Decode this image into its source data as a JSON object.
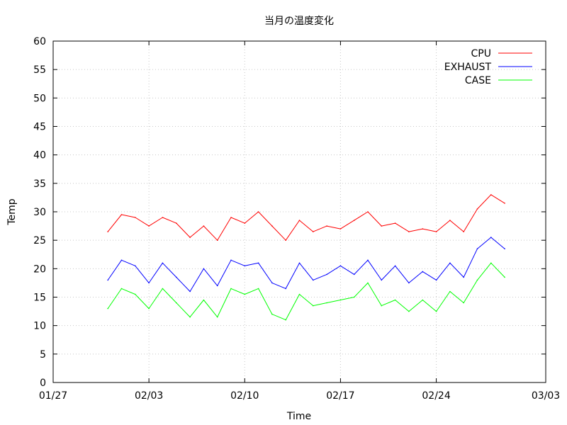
{
  "chart_data": {
    "type": "line",
    "title": "当月の温度変化",
    "xlabel": "Time",
    "ylabel": "Temp",
    "x_range": [
      "01/27",
      "03/03"
    ],
    "ylim": [
      0,
      60
    ],
    "y_ticks": [
      "0",
      "5",
      "10",
      "15",
      "20",
      "25",
      "30",
      "35",
      "40",
      "45",
      "50",
      "55",
      "60"
    ],
    "x_ticks": [
      "01/27",
      "02/03",
      "02/10",
      "02/17",
      "02/24",
      "03/03"
    ],
    "grid": true,
    "legend_position": "top-right",
    "x": [
      "01/31",
      "02/01",
      "02/02",
      "02/03",
      "02/04",
      "02/05",
      "02/06",
      "02/07",
      "02/08",
      "02/09",
      "02/10",
      "02/11",
      "02/12",
      "02/13",
      "02/14",
      "02/15",
      "02/16",
      "02/17",
      "02/18",
      "02/19",
      "02/20",
      "02/21",
      "02/22",
      "02/23",
      "02/24",
      "02/25",
      "02/26",
      "02/27",
      "02/28",
      "02/29"
    ],
    "series": [
      {
        "name": "CPU",
        "color": "#ff0000",
        "values": [
          26.5,
          29.5,
          29,
          27.5,
          29,
          28,
          25.5,
          27.5,
          25,
          29,
          28,
          30,
          27.5,
          25,
          28.5,
          26.5,
          27.5,
          27,
          28.5,
          30,
          27.5,
          28,
          26.5,
          27,
          26.5,
          28.5,
          26.5,
          30.5,
          33,
          31.5
        ]
      },
      {
        "name": "EXHAUST",
        "color": "#0000ff",
        "values": [
          18,
          21.5,
          20.5,
          17.5,
          21,
          18.5,
          16,
          20,
          17,
          21.5,
          20.5,
          21,
          17.5,
          16.5,
          21,
          18,
          19,
          20.5,
          19,
          21.5,
          18,
          20.5,
          17.5,
          19.5,
          18,
          21,
          18.5,
          23.5,
          25.5,
          23.5
        ]
      },
      {
        "name": "CASE",
        "color": "#00ff00",
        "values": [
          13,
          16.5,
          15.5,
          13,
          16.5,
          14,
          11.5,
          14.5,
          11.5,
          16.5,
          15.5,
          16.5,
          12,
          11,
          15.5,
          13.5,
          14,
          14.5,
          15,
          17.5,
          13.5,
          14.5,
          12.5,
          14.5,
          12.5,
          16,
          14,
          18,
          21,
          18.5
        ]
      }
    ]
  }
}
